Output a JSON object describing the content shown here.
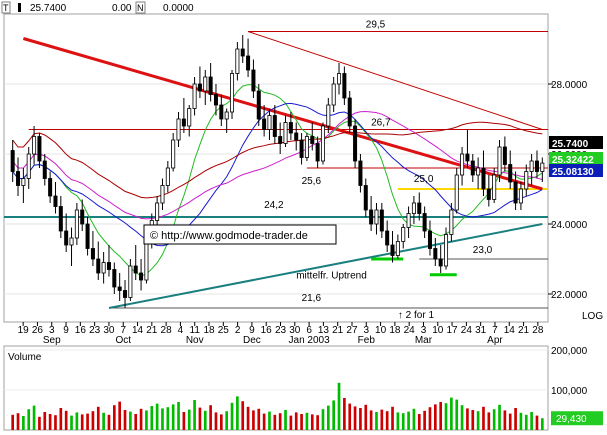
{
  "header": {
    "label_t": "T",
    "price": "25.7400",
    "change": "0.00",
    "label_n": "N",
    "volume_value": "0.0000"
  },
  "chart_data": {
    "type": "candlestick",
    "title": "",
    "xlabel": "",
    "ylabel": "",
    "log_label": "LOG",
    "price_axis": {
      "ticks": [
        22.0,
        24.0,
        26.0,
        28.0
      ],
      "tick_labels": [
        "22.0000",
        "24.0000",
        "26.0000",
        "28.0000"
      ],
      "ylim": [
        21.2,
        30.0
      ]
    },
    "volume_axis": {
      "ticks": [
        100000,
        200000
      ],
      "tick_labels": [
        "100,000",
        "200,000"
      ],
      "ylim": [
        0,
        210000
      ]
    },
    "date_labels": [
      "19",
      "26",
      "3",
      "9",
      "16",
      "23",
      "30",
      "7",
      "14",
      "21",
      "28",
      "4",
      "11",
      "18",
      "25",
      "2",
      "9",
      "16",
      "23",
      "30",
      "6",
      "13",
      "21",
      "27",
      "3",
      "10",
      "18",
      "24",
      "3",
      "10",
      "17",
      "24",
      "31",
      "7",
      "14",
      "21",
      "28"
    ],
    "month_labels": [
      "Sep",
      "Oct",
      "Nov",
      "Dec",
      "Jan 2003",
      "Feb",
      "Mar",
      "Apr"
    ],
    "price_boxes": [
      {
        "value": "25.7400",
        "color": "#000000"
      },
      {
        "value": "25.32422",
        "color": "#22cc22"
      },
      {
        "value": "25.08130",
        "color": "#0b1fb8"
      }
    ],
    "volume_label": "Volume",
    "last_volume": "29,430",
    "annotations": {
      "watermark": "© http://www.godmode-trader.de",
      "uptrend": "mittelfr. Uptrend",
      "split": "↑ 2 for 1",
      "levels": [
        {
          "label": "29,5",
          "value": 29.5
        },
        {
          "label": "26,7",
          "value": 26.7
        },
        {
          "label": "25,6",
          "value": 25.6
        },
        {
          "label": "25,0",
          "value": 25.0
        },
        {
          "label": "24,2",
          "value": 24.2
        },
        {
          "label": "23,0",
          "value": 23.0
        },
        {
          "label": "21,6",
          "value": 21.6
        }
      ]
    },
    "candles": [
      [
        26.1,
        26.4,
        25.2,
        25.5
      ],
      [
        25.5,
        25.9,
        24.8,
        25.1
      ],
      [
        25.1,
        25.6,
        24.6,
        25.3
      ],
      [
        25.3,
        26.2,
        25.0,
        26.0
      ],
      [
        26.0,
        26.8,
        25.7,
        26.5
      ],
      [
        26.5,
        26.6,
        25.6,
        25.8
      ],
      [
        25.8,
        26.0,
        25.1,
        25.3
      ],
      [
        25.3,
        25.5,
        24.6,
        24.8
      ],
      [
        24.8,
        25.2,
        24.3,
        24.5
      ],
      [
        24.5,
        24.8,
        23.6,
        23.8
      ],
      [
        23.8,
        24.3,
        23.2,
        23.4
      ],
      [
        23.4,
        23.9,
        22.8,
        23.6
      ],
      [
        23.6,
        24.6,
        23.4,
        24.4
      ],
      [
        24.4,
        24.7,
        23.8,
        24.0
      ],
      [
        24.0,
        24.2,
        23.1,
        23.3
      ],
      [
        23.3,
        23.8,
        22.8,
        23.0
      ],
      [
        23.0,
        23.5,
        22.4,
        22.6
      ],
      [
        22.6,
        23.2,
        22.3,
        22.9
      ],
      [
        22.9,
        23.4,
        22.5,
        22.7
      ],
      [
        22.7,
        22.9,
        22.0,
        22.2
      ],
      [
        22.2,
        22.6,
        21.8,
        22.1
      ],
      [
        22.1,
        22.4,
        21.6,
        21.9
      ],
      [
        21.9,
        23.0,
        21.8,
        22.8
      ],
      [
        22.8,
        23.4,
        22.4,
        22.6
      ],
      [
        22.6,
        23.0,
        22.1,
        22.4
      ],
      [
        22.4,
        23.6,
        22.3,
        23.5
      ],
      [
        23.5,
        24.3,
        23.3,
        24.1
      ],
      [
        24.1,
        24.8,
        23.8,
        24.6
      ],
      [
        24.6,
        25.3,
        24.4,
        25.1
      ],
      [
        25.1,
        25.8,
        24.9,
        25.6
      ],
      [
        25.6,
        26.6,
        25.5,
        26.4
      ],
      [
        26.4,
        27.2,
        26.2,
        27.0
      ],
      [
        27.0,
        27.6,
        26.6,
        26.8
      ],
      [
        26.8,
        27.4,
        26.5,
        27.3
      ],
      [
        27.3,
        28.2,
        27.1,
        28.0
      ],
      [
        28.0,
        28.5,
        27.6,
        27.8
      ],
      [
        27.8,
        28.4,
        27.4,
        28.2
      ],
      [
        28.2,
        28.6,
        27.5,
        27.7
      ],
      [
        27.7,
        28.0,
        27.1,
        27.4
      ],
      [
        27.4,
        27.7,
        26.8,
        27.0
      ],
      [
        27.0,
        27.3,
        26.6,
        27.2
      ],
      [
        27.2,
        28.4,
        27.0,
        28.3
      ],
      [
        28.3,
        29.2,
        28.1,
        29.0
      ],
      [
        29.0,
        29.4,
        28.6,
        28.8
      ],
      [
        28.8,
        29.3,
        28.2,
        28.4
      ],
      [
        28.4,
        28.7,
        27.6,
        27.8
      ],
      [
        27.8,
        28.0,
        26.8,
        27.0
      ],
      [
        27.0,
        27.4,
        26.5,
        26.7
      ],
      [
        26.7,
        27.3,
        26.4,
        27.1
      ],
      [
        27.1,
        27.4,
        26.3,
        26.5
      ],
      [
        26.5,
        26.9,
        26.0,
        26.3
      ],
      [
        26.3,
        27.1,
        26.2,
        26.9
      ],
      [
        26.9,
        27.2,
        26.4,
        26.6
      ],
      [
        26.6,
        26.9,
        26.1,
        26.4
      ],
      [
        26.4,
        26.6,
        25.7,
        25.9
      ],
      [
        25.9,
        26.6,
        25.8,
        26.5
      ],
      [
        26.5,
        26.9,
        26.1,
        26.3
      ],
      [
        26.3,
        26.5,
        25.6,
        25.8
      ],
      [
        25.8,
        26.9,
        25.7,
        26.8
      ],
      [
        26.8,
        27.6,
        26.6,
        27.4
      ],
      [
        27.4,
        28.2,
        27.2,
        28.0
      ],
      [
        28.0,
        28.6,
        27.7,
        28.3
      ],
      [
        28.3,
        28.5,
        27.4,
        27.6
      ],
      [
        27.6,
        27.8,
        26.6,
        26.8
      ],
      [
        26.8,
        27.0,
        25.6,
        25.8
      ],
      [
        25.8,
        26.0,
        24.9,
        25.1
      ],
      [
        25.1,
        25.3,
        24.2,
        24.4
      ],
      [
        24.4,
        24.8,
        23.8,
        24.0
      ],
      [
        24.0,
        24.6,
        23.7,
        24.4
      ],
      [
        24.4,
        24.6,
        23.6,
        23.8
      ],
      [
        23.8,
        24.1,
        23.2,
        23.4
      ],
      [
        23.4,
        23.8,
        22.9,
        23.1
      ],
      [
        23.1,
        23.7,
        23.0,
        23.5
      ],
      [
        23.5,
        24.0,
        23.3,
        23.9
      ],
      [
        23.9,
        24.5,
        23.6,
        24.3
      ],
      [
        24.3,
        24.8,
        24.0,
        24.6
      ],
      [
        24.6,
        24.9,
        24.1,
        24.3
      ],
      [
        24.3,
        24.5,
        23.6,
        23.8
      ],
      [
        23.8,
        24.1,
        23.1,
        23.3
      ],
      [
        23.3,
        23.6,
        22.8,
        23.0
      ],
      [
        23.0,
        23.4,
        22.6,
        22.8
      ],
      [
        22.8,
        23.9,
        22.7,
        23.7
      ],
      [
        23.7,
        24.6,
        23.5,
        24.4
      ],
      [
        24.4,
        25.6,
        24.3,
        25.4
      ],
      [
        25.4,
        26.2,
        25.1,
        26.0
      ],
      [
        26.0,
        26.7,
        25.6,
        25.8
      ],
      [
        25.8,
        26.0,
        25.2,
        25.4
      ],
      [
        25.4,
        25.9,
        25.0,
        25.6
      ],
      [
        25.6,
        26.1,
        24.8,
        25.0
      ],
      [
        25.0,
        25.4,
        24.5,
        24.7
      ],
      [
        24.7,
        25.6,
        24.6,
        25.4
      ],
      [
        25.4,
        26.4,
        25.2,
        26.2
      ],
      [
        26.2,
        26.5,
        25.5,
        25.7
      ],
      [
        25.7,
        26.1,
        25.0,
        25.2
      ],
      [
        25.2,
        25.5,
        24.4,
        24.6
      ],
      [
        24.6,
        25.2,
        24.4,
        25.0
      ],
      [
        25.0,
        25.7,
        24.8,
        25.5
      ],
      [
        25.5,
        26.0,
        25.1,
        25.8
      ],
      [
        25.8,
        26.1,
        25.3,
        25.5
      ],
      [
        25.5,
        25.9,
        25.2,
        25.74
      ]
    ],
    "volumes": [
      38000,
      42000,
      35000,
      52000,
      61000,
      33000,
      45000,
      40000,
      37000,
      55000,
      48000,
      36000,
      44000,
      39000,
      41000,
      47000,
      58000,
      43000,
      38000,
      62000,
      71000,
      50000,
      46000,
      40000,
      53000,
      49000,
      60000,
      66000,
      54000,
      57000,
      64000,
      70000,
      45000,
      51000,
      75000,
      56000,
      48000,
      62000,
      44000,
      39000,
      47000,
      68000,
      84000,
      72000,
      58000,
      49000,
      53000,
      41000,
      46000,
      38000,
      42000,
      50000,
      36000,
      44000,
      40000,
      43000,
      39000,
      37000,
      52000,
      61000,
      74000,
      118000,
      80000,
      66000,
      59000,
      55000,
      63000,
      49000,
      45000,
      51000,
      47000,
      58000,
      44000,
      42000,
      46000,
      53000,
      40000,
      48000,
      57000,
      64000,
      70000,
      67000,
      81000,
      76000,
      62000,
      54000,
      50000,
      47000,
      58000,
      44000,
      52000,
      63000,
      49000,
      41000,
      55000,
      43000,
      38000,
      45000,
      36000,
      29430
    ]
  }
}
